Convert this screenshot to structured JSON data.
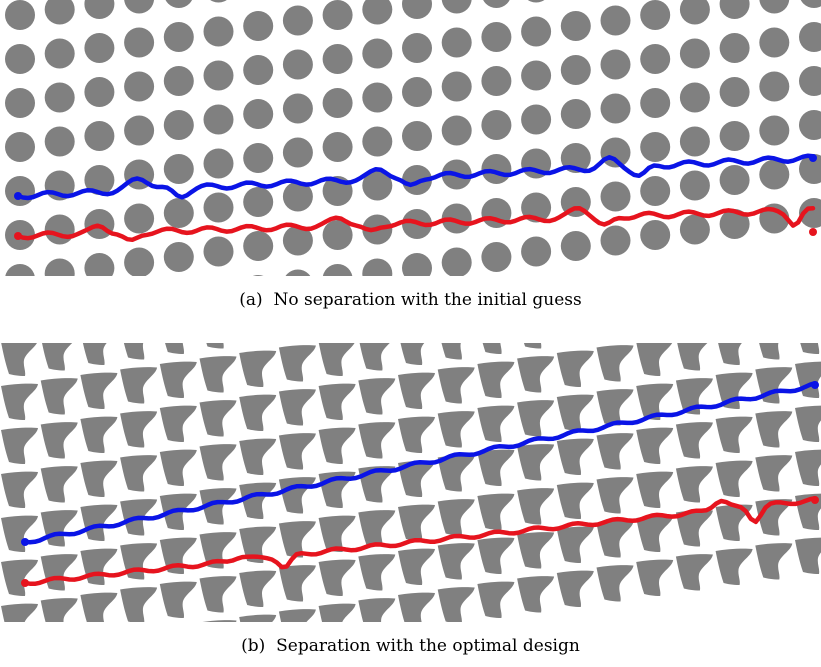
{
  "figure": {
    "panel_a": {
      "caption_tag": "(a)",
      "caption_text": "No separation with the initial guess",
      "obstacle_shape": "circle"
    },
    "panel_b": {
      "caption_tag": "(b)",
      "caption_text": "Separation with the optimal design",
      "obstacle_shape": "curved-quadrilateral"
    },
    "colors": {
      "obstacle": "#808080",
      "trajectory_upper": "#0a14e6",
      "trajectory_lower": "#e6141e",
      "background": "#ffffff"
    }
  }
}
